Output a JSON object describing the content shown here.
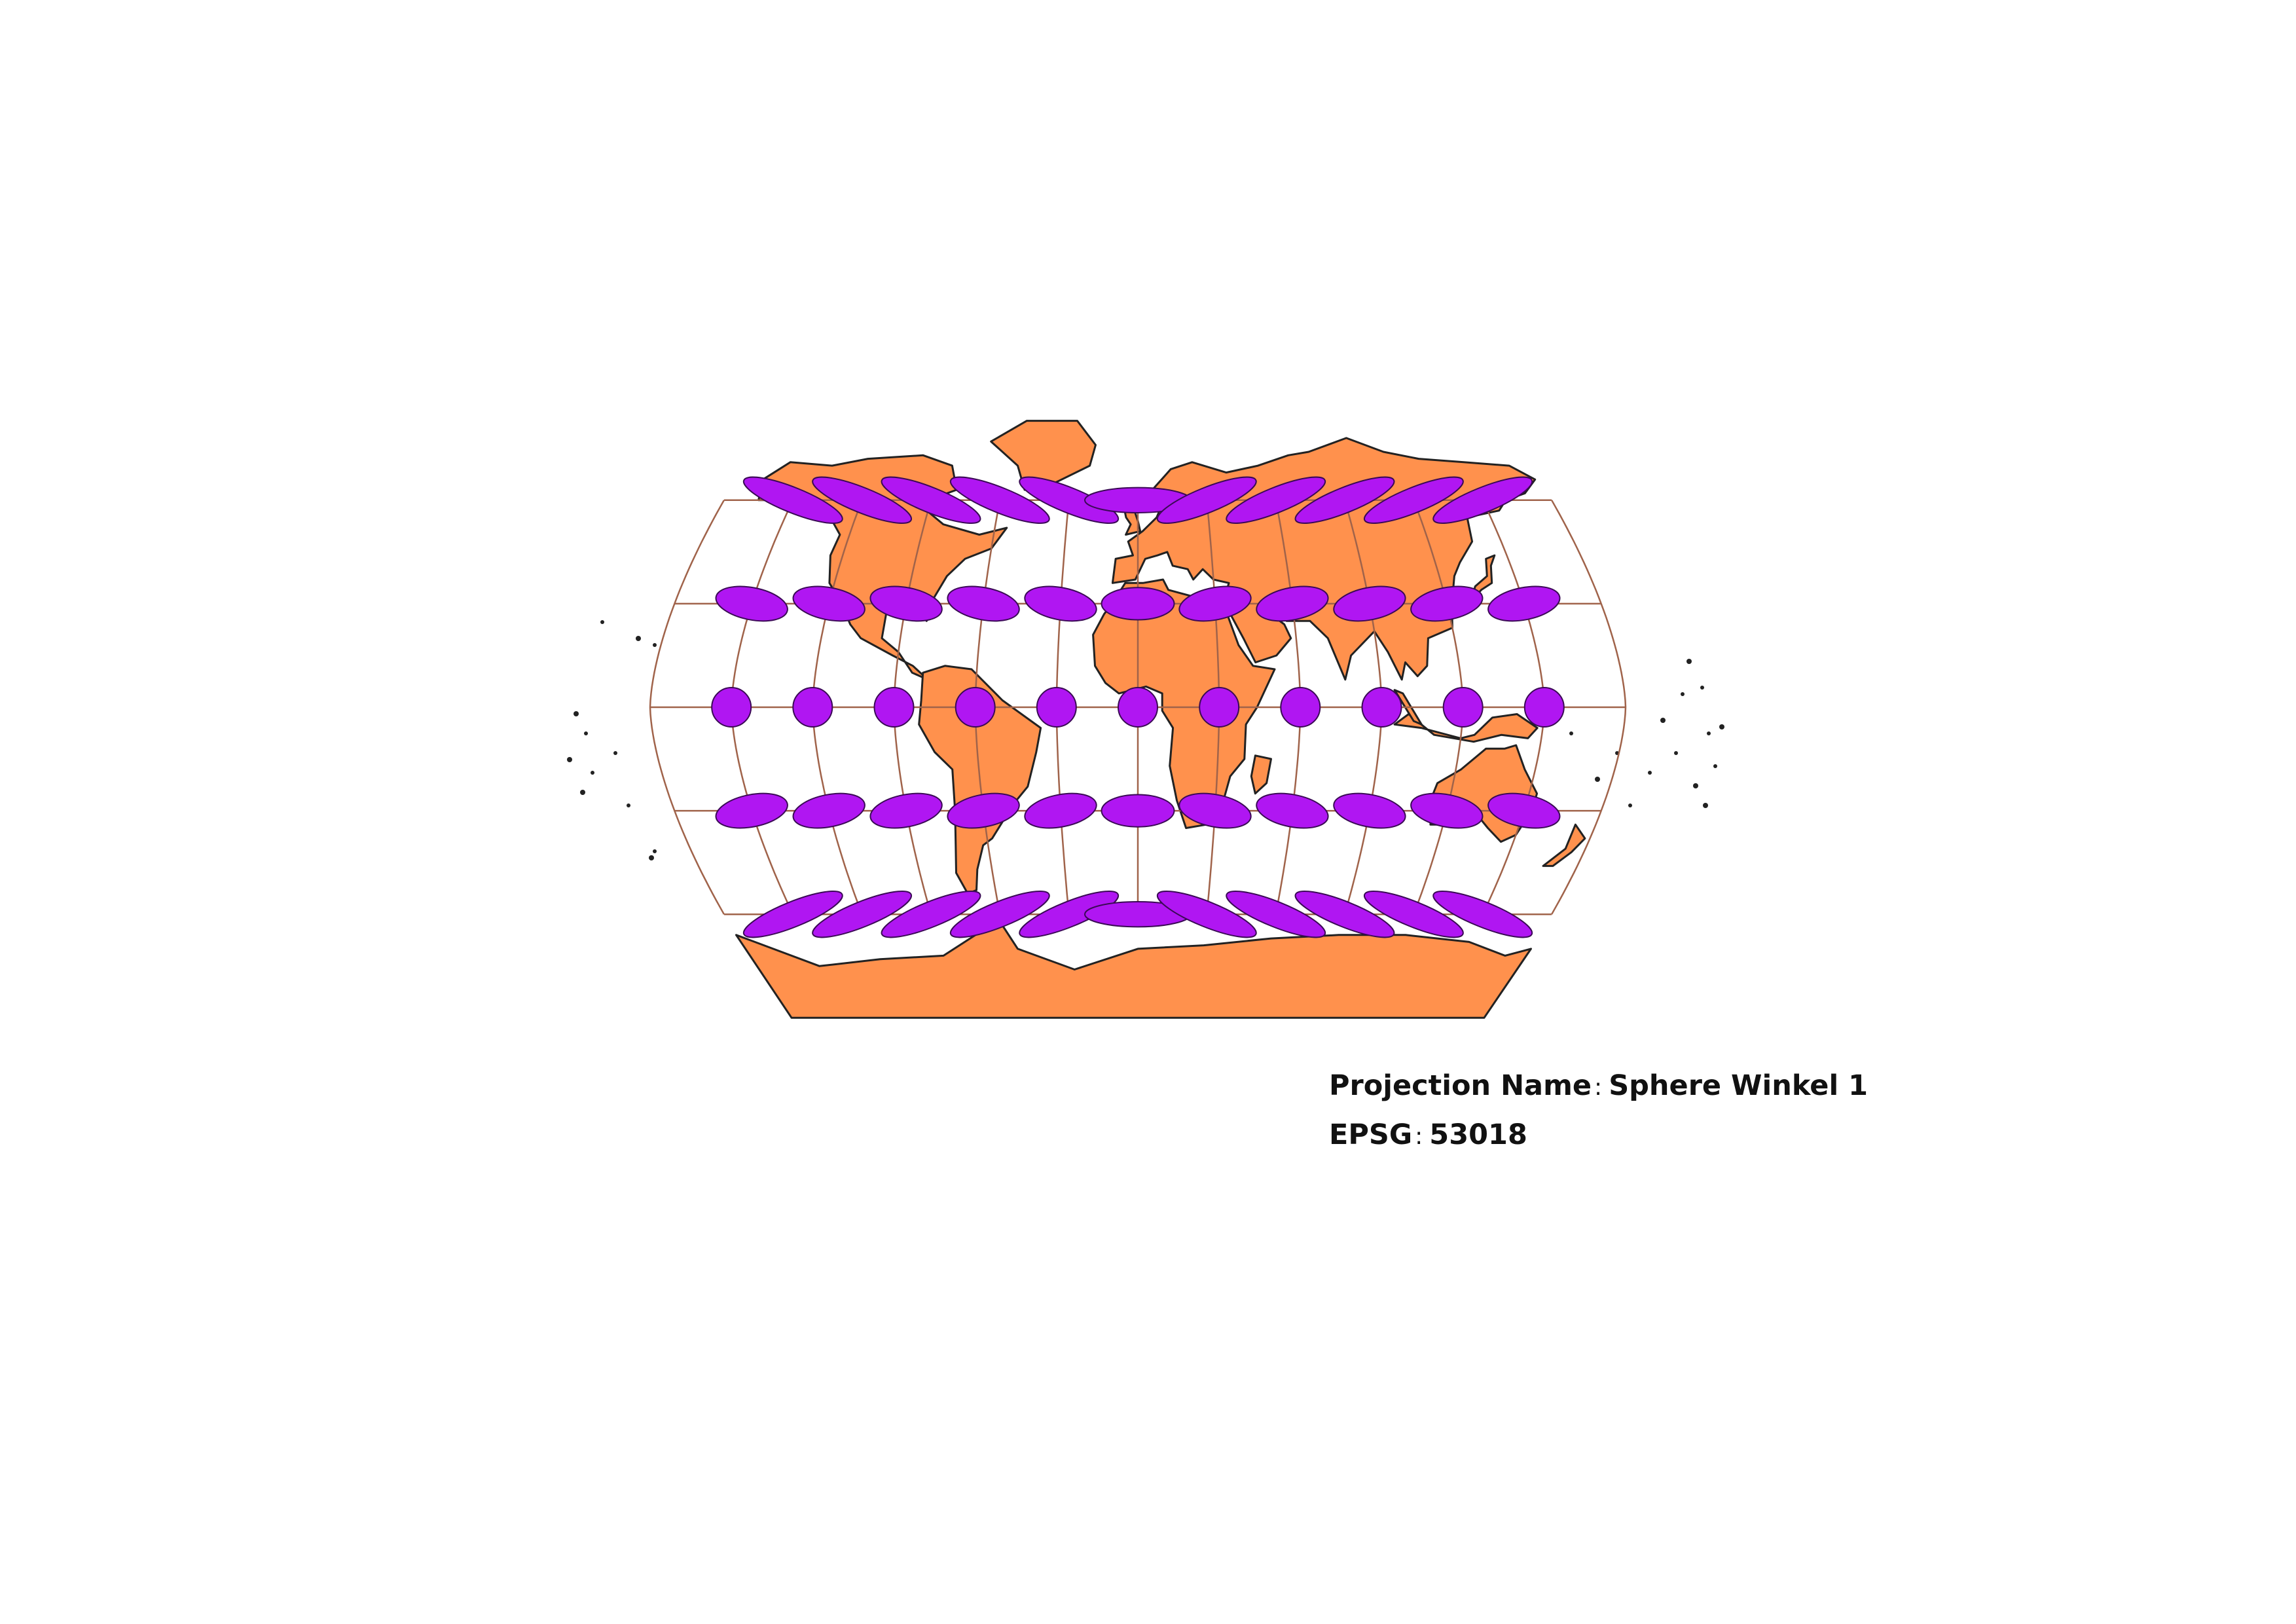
{
  "projection": {
    "name_label": "Projection Name",
    "name_value": "Sphere Winkel 1",
    "epsg_label": "EPSG",
    "epsg_value": "53018",
    "separator": ":"
  },
  "map": {
    "land_color": "#FF914D",
    "coast_color": "#222222",
    "graticule_color": "#A0634A",
    "indicatrix_color": "#B016F2",
    "indicatrix_stroke": "#3A0A55",
    "lon_step_deg": 30,
    "lat_values_deg": [
      60,
      30,
      0,
      -30,
      -60
    ],
    "lon_values_deg": [
      -150,
      -120,
      -90,
      -60,
      -30,
      0,
      30,
      60,
      90,
      120,
      150
    ]
  }
}
